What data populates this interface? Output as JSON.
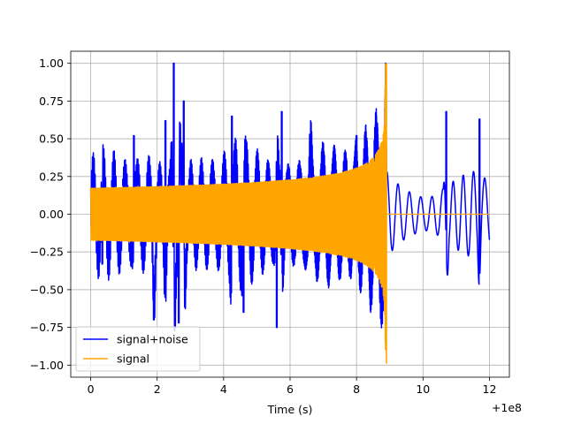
{
  "chart_data": {
    "type": "line",
    "xlabel": "Time (s)",
    "ylabel": "",
    "x_offset_label": "+1e8",
    "xlim": [
      -0.6,
      12.6
    ],
    "ylim": [
      -1.08,
      1.08
    ],
    "grid": true,
    "legend_position": "lower-left",
    "x_ticks": [
      {
        "value": 0,
        "label": "0"
      },
      {
        "value": 2,
        "label": "2"
      },
      {
        "value": 4,
        "label": "4"
      },
      {
        "value": 6,
        "label": "6"
      },
      {
        "value": 8,
        "label": "8"
      },
      {
        "value": 10,
        "label": "10"
      },
      {
        "value": 12,
        "label": "12"
      }
    ],
    "y_ticks": [
      {
        "value": 1.0,
        "label": "1.00"
      },
      {
        "value": 0.75,
        "label": "0.75"
      },
      {
        "value": 0.5,
        "label": "0.50"
      },
      {
        "value": 0.25,
        "label": "0.25"
      },
      {
        "value": 0.0,
        "label": "0.00"
      },
      {
        "value": -0.25,
        "label": "−0.25"
      },
      {
        "value": -0.5,
        "label": "−0.50"
      },
      {
        "value": -0.75,
        "label": "−0.75"
      },
      {
        "value": -1.0,
        "label": "−1.00"
      }
    ],
    "series": [
      {
        "name": "signal+noise",
        "color": "#0000ff",
        "x_range": [
          0,
          12
        ],
        "visible_peaks": [
          {
            "x": 0.35,
            "y": 0.42
          },
          {
            "x": 0.35,
            "y": -0.33
          },
          {
            "x": 1.3,
            "y": 0.52
          },
          {
            "x": 1.9,
            "y": -0.7
          },
          {
            "x": 2.25,
            "y": 0.62
          },
          {
            "x": 2.5,
            "y": 1.0
          },
          {
            "x": 2.65,
            "y": -0.72
          },
          {
            "x": 2.8,
            "y": 0.75
          },
          {
            "x": 4.25,
            "y": 0.65
          },
          {
            "x": 4.6,
            "y": -0.65
          },
          {
            "x": 5.6,
            "y": -0.75
          },
          {
            "x": 5.75,
            "y": 0.68
          },
          {
            "x": 6.6,
            "y": 0.53
          },
          {
            "x": 8.0,
            "y": 0.52
          },
          {
            "x": 10.7,
            "y": 0.68
          },
          {
            "x": 11.7,
            "y": 0.63
          }
        ]
      },
      {
        "name": "signal",
        "color": "#ffa500",
        "x_range": [
          0,
          12
        ],
        "visible_points": [
          {
            "x": 0.0,
            "y": 0.18
          },
          {
            "x": 0.0,
            "y": -0.18
          },
          {
            "x": 4.0,
            "y": 0.2
          },
          {
            "x": 4.0,
            "y": -0.2
          },
          {
            "x": 7.0,
            "y": 0.27
          },
          {
            "x": 7.0,
            "y": -0.27
          },
          {
            "x": 8.5,
            "y": 0.42
          },
          {
            "x": 8.5,
            "y": -0.42
          },
          {
            "x": 8.9,
            "y": 1.0
          },
          {
            "x": 8.9,
            "y": -0.99
          },
          {
            "x": 9.0,
            "y": 0.0
          },
          {
            "x": 12.0,
            "y": 0.0
          }
        ]
      }
    ]
  }
}
